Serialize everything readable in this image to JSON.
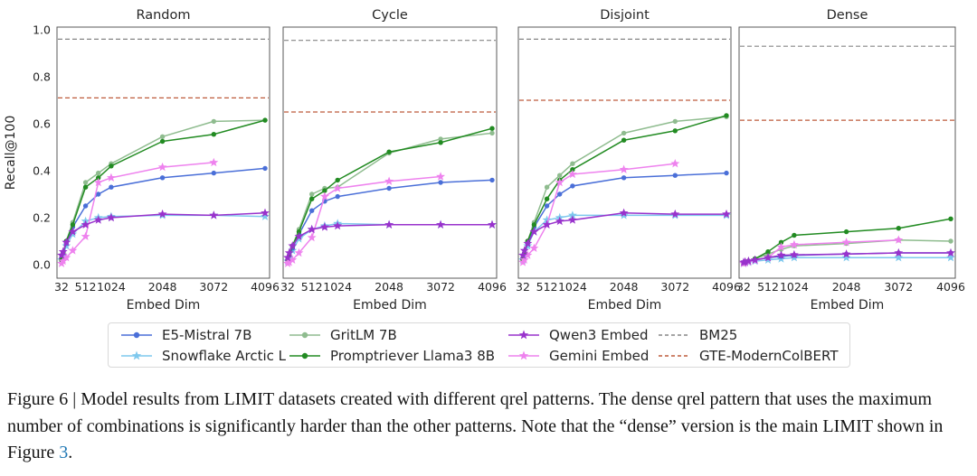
{
  "figure": {
    "titles": [
      "Random",
      "Cycle",
      "Disjoint",
      "Dense"
    ],
    "xlabel": "Embed Dim",
    "ylabel": "Recall@100",
    "axis_color": "#595959",
    "text_color": "#262626"
  },
  "chart_data": [
    {
      "type": "line",
      "title": "Random",
      "xlabel": "Embed Dim",
      "ylabel": "Recall@100",
      "ylim": [
        0.0,
        1.0
      ],
      "y_ticks": [
        "0.0",
        "0.2",
        "0.4",
        "0.6",
        "0.8",
        "1.0"
      ],
      "x_ticks": [
        32,
        512,
        1024,
        2048,
        3072,
        4096
      ],
      "x": [
        32,
        64,
        128,
        256,
        512,
        768,
        1024,
        2048,
        3072,
        4096
      ],
      "series": [
        {
          "name": "Snowflake Arctic L",
          "color": "#7ec8ed",
          "marker": "star",
          "values": [
            0.02,
            0.04,
            0.08,
            0.13,
            0.185,
            0.2,
            0.205,
            0.21,
            0.21,
            0.205
          ]
        },
        {
          "name": "E5-Mistral 7B",
          "color": "#4a6fd8",
          "marker": "circle",
          "values": [
            0.03,
            0.05,
            0.09,
            0.16,
            0.25,
            0.3,
            0.33,
            0.37,
            0.39,
            0.41
          ]
        },
        {
          "name": "GritLM 7B",
          "color": "#8fbc8f",
          "marker": "circle",
          "values": [
            0.02,
            0.05,
            0.1,
            0.18,
            0.35,
            0.39,
            0.43,
            0.545,
            0.61,
            0.615
          ]
        },
        {
          "name": "Promptriever Llama3 8B",
          "color": "#228b22",
          "marker": "circle",
          "values": [
            0.02,
            0.05,
            0.1,
            0.17,
            0.33,
            0.37,
            0.42,
            0.525,
            0.555,
            0.615
          ]
        },
        {
          "name": "Gemini Embed",
          "color": "#ee82ee",
          "marker": "star",
          "values": [
            0.005,
            0.015,
            0.03,
            0.06,
            0.12,
            0.35,
            0.37,
            0.415,
            0.435
          ]
        },
        {
          "name": "Qwen3 Embed",
          "color": "#9932cc",
          "marker": "star",
          "values": [
            0.04,
            0.055,
            0.095,
            0.14,
            0.17,
            0.19,
            0.2,
            0.215,
            0.21,
            0.22
          ]
        }
      ],
      "baselines": [
        {
          "name": "BM25",
          "value": 0.96,
          "color": "#858585"
        },
        {
          "name": "GTE-ModernColBERT",
          "value": 0.71,
          "color": "#bd5b3c"
        }
      ]
    },
    {
      "type": "line",
      "title": "Cycle",
      "xlabel": "Embed Dim",
      "ylabel": "Recall@100",
      "ylim": [
        0.0,
        1.0
      ],
      "y_ticks": [
        "0.0",
        "0.2",
        "0.4",
        "0.6",
        "0.8",
        "1.0"
      ],
      "x_ticks": [
        32,
        512,
        1024,
        2048,
        3072,
        4096
      ],
      "x": [
        32,
        64,
        128,
        256,
        512,
        768,
        1024,
        2048,
        3072,
        4096
      ],
      "series": [
        {
          "name": "Snowflake Arctic L",
          "color": "#7ec8ed",
          "marker": "star",
          "values": [
            0.015,
            0.03,
            0.06,
            0.11,
            0.15,
            0.165,
            0.175,
            0.17,
            0.17,
            0.17
          ]
        },
        {
          "name": "E5-Mistral 7B",
          "color": "#4a6fd8",
          "marker": "circle",
          "values": [
            0.02,
            0.04,
            0.07,
            0.13,
            0.23,
            0.27,
            0.29,
            0.325,
            0.35,
            0.36
          ]
        },
        {
          "name": "GritLM 7B",
          "color": "#8fbc8f",
          "marker": "circle",
          "values": [
            0.02,
            0.04,
            0.08,
            0.15,
            0.3,
            0.325,
            0.33,
            0.475,
            0.535,
            0.56
          ]
        },
        {
          "name": "Promptriever Llama3 8B",
          "color": "#228b22",
          "marker": "circle",
          "values": [
            0.02,
            0.04,
            0.08,
            0.14,
            0.28,
            0.315,
            0.36,
            0.48,
            0.52,
            0.58
          ]
        },
        {
          "name": "Gemini Embed",
          "color": "#ee82ee",
          "marker": "star",
          "values": [
            0.005,
            0.01,
            0.02,
            0.05,
            0.115,
            0.29,
            0.325,
            0.355,
            0.375
          ]
        },
        {
          "name": "Qwen3 Embed",
          "color": "#9932cc",
          "marker": "star",
          "values": [
            0.03,
            0.05,
            0.08,
            0.12,
            0.15,
            0.16,
            0.165,
            0.17,
            0.17,
            0.17
          ]
        }
      ],
      "baselines": [
        {
          "name": "BM25",
          "value": 0.955,
          "color": "#858585"
        },
        {
          "name": "GTE-ModernColBERT",
          "value": 0.65,
          "color": "#bd5b3c"
        }
      ]
    },
    {
      "type": "line",
      "title": "Disjoint",
      "xlabel": "Embed Dim",
      "ylabel": "Recall@100",
      "ylim": [
        0.0,
        1.0
      ],
      "y_ticks": [
        "0.0",
        "0.2",
        "0.4",
        "0.6",
        "0.8",
        "1.0"
      ],
      "x_ticks": [
        32,
        512,
        1024,
        2048,
        3072,
        4096
      ],
      "x": [
        32,
        64,
        128,
        256,
        512,
        768,
        1024,
        2048,
        3072,
        4096
      ],
      "series": [
        {
          "name": "Snowflake Arctic L",
          "color": "#7ec8ed",
          "marker": "star",
          "values": [
            0.02,
            0.04,
            0.08,
            0.14,
            0.19,
            0.2,
            0.21,
            0.21,
            0.21,
            0.21
          ]
        },
        {
          "name": "E5-Mistral 7B",
          "color": "#4a6fd8",
          "marker": "circle",
          "values": [
            0.03,
            0.05,
            0.09,
            0.16,
            0.25,
            0.3,
            0.335,
            0.37,
            0.38,
            0.39
          ]
        },
        {
          "name": "GritLM 7B",
          "color": "#8fbc8f",
          "marker": "circle",
          "values": [
            0.02,
            0.05,
            0.1,
            0.18,
            0.33,
            0.38,
            0.43,
            0.56,
            0.61,
            0.63
          ]
        },
        {
          "name": "Promptriever Llama3 8B",
          "color": "#228b22",
          "marker": "circle",
          "values": [
            0.02,
            0.05,
            0.1,
            0.17,
            0.28,
            0.36,
            0.405,
            0.53,
            0.57,
            0.635
          ]
        },
        {
          "name": "Gemini Embed",
          "color": "#ee82ee",
          "marker": "star",
          "values": [
            0.01,
            0.02,
            0.04,
            0.07,
            0.17,
            0.35,
            0.385,
            0.405,
            0.43
          ]
        },
        {
          "name": "Qwen3 Embed",
          "color": "#9932cc",
          "marker": "star",
          "values": [
            0.04,
            0.06,
            0.09,
            0.14,
            0.17,
            0.185,
            0.19,
            0.22,
            0.215,
            0.215
          ]
        }
      ],
      "baselines": [
        {
          "name": "BM25",
          "value": 0.96,
          "color": "#858585"
        },
        {
          "name": "GTE-ModernColBERT",
          "value": 0.7,
          "color": "#bd5b3c"
        }
      ]
    },
    {
      "type": "line",
      "title": "Dense",
      "xlabel": "Embed Dim",
      "ylabel": "Recall@100",
      "ylim": [
        0.0,
        1.0
      ],
      "y_ticks": [
        "0.0",
        "0.2",
        "0.4",
        "0.6",
        "0.8",
        "1.0"
      ],
      "x_ticks": [
        32,
        512,
        1024,
        2048,
        3072,
        4096
      ],
      "x": [
        32,
        64,
        128,
        256,
        512,
        768,
        1024,
        2048,
        3072,
        4096
      ],
      "series": [
        {
          "name": "Snowflake Arctic L",
          "color": "#7ec8ed",
          "marker": "star",
          "values": [
            0.005,
            0.008,
            0.01,
            0.015,
            0.02,
            0.025,
            0.03,
            0.03,
            0.03,
            0.03
          ]
        },
        {
          "name": "E5-Mistral 7B",
          "color": "#4a6fd8",
          "marker": "circle",
          "values": [
            0.005,
            0.01,
            0.015,
            0.02,
            0.03,
            0.035,
            0.04,
            0.045,
            0.05,
            0.05
          ]
        },
        {
          "name": "GritLM 7B",
          "color": "#8fbc8f",
          "marker": "circle",
          "values": [
            0.005,
            0.01,
            0.015,
            0.025,
            0.045,
            0.065,
            0.08,
            0.09,
            0.105,
            0.1
          ]
        },
        {
          "name": "Promptriever Llama3 8B",
          "color": "#228b22",
          "marker": "circle",
          "values": [
            0.005,
            0.01,
            0.015,
            0.025,
            0.055,
            0.095,
            0.125,
            0.14,
            0.155,
            0.195
          ]
        },
        {
          "name": "Gemini Embed",
          "color": "#ee82ee",
          "marker": "star",
          "values": [
            0.005,
            0.008,
            0.012,
            0.018,
            0.03,
            0.075,
            0.085,
            0.095,
            0.105
          ]
        },
        {
          "name": "Qwen3 Embed",
          "color": "#9932cc",
          "marker": "star",
          "values": [
            0.01,
            0.012,
            0.015,
            0.02,
            0.03,
            0.04,
            0.042,
            0.045,
            0.05,
            0.05
          ]
        }
      ],
      "baselines": [
        {
          "name": "BM25",
          "value": 0.93,
          "color": "#858585"
        },
        {
          "name": "GTE-ModernColBERT",
          "value": 0.615,
          "color": "#bd5b3c"
        }
      ]
    }
  ],
  "legend": {
    "columns": [
      [
        {
          "label": "E5-Mistral 7B",
          "color": "#4a6fd8",
          "marker": "circle"
        },
        {
          "label": "Snowflake Arctic L",
          "color": "#7ec8ed",
          "marker": "star"
        }
      ],
      [
        {
          "label": "GritLM 7B",
          "color": "#8fbc8f",
          "marker": "circle"
        },
        {
          "label": "Promptriever Llama3 8B",
          "color": "#228b22",
          "marker": "circle"
        }
      ],
      [
        {
          "label": "Qwen3 Embed",
          "color": "#9932cc",
          "marker": "star"
        },
        {
          "label": "Gemini Embed",
          "color": "#ee82ee",
          "marker": "star"
        }
      ],
      [
        {
          "label": "BM25",
          "color": "#858585",
          "dashed": true
        },
        {
          "label": "GTE-ModernColBERT",
          "color": "#bd5b3c",
          "dashed": true
        }
      ]
    ]
  },
  "caption": {
    "text": "Figure 6 | Model results from LIMIT datasets created with different qrel patterns. The dense qrel pattern that uses the maximum number of combinations is significantly harder than the other patterns. Note that the “dense” version is the main LIMIT shown in Figure ",
    "link": "3",
    "suffix": "."
  }
}
